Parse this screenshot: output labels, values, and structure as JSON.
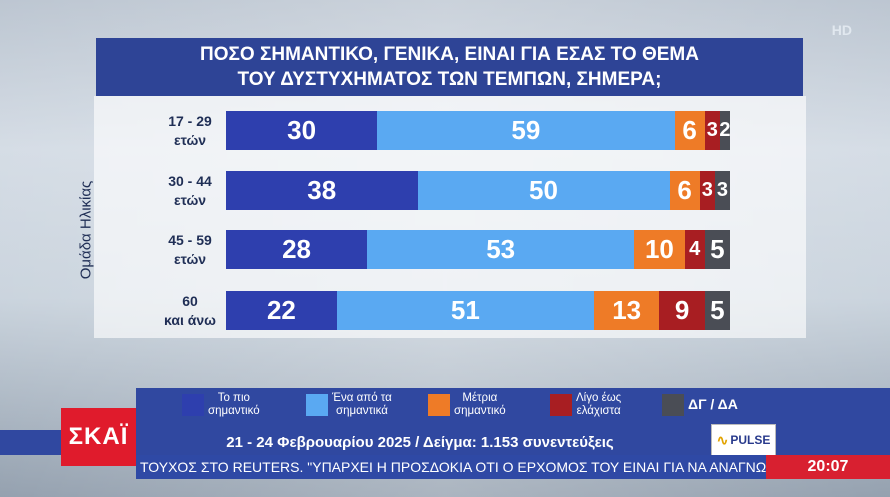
{
  "hd_badge": "HD",
  "title_lines": [
    "ΠΟΣΟ ΣΗΜΑΝΤΙΚΟ, ΓΕΝΙΚΑ, ΕΙΝΑΙ ΓΙΑ ΕΣΑΣ ΤΟ ΘΕΜΑ",
    "ΤΟΥ ΔΥΣΤΥΧΗΜΑΤΟΣ ΤΩΝ ΤΕΜΠΩΝ, ΣΗΜΕΡΑ;"
  ],
  "chart_data": {
    "type": "bar",
    "orientation": "horizontal",
    "stacked": true,
    "ylabel": "Ομάδα Ηλικίας",
    "categories": [
      [
        "17 - 29",
        "ετών"
      ],
      [
        "30 - 44",
        "ετών"
      ],
      [
        "45 - 59",
        "ετών"
      ],
      [
        "60",
        "και άνω"
      ]
    ],
    "series": [
      {
        "name": "Το πιο σημαντικό",
        "color": "#2e3fae",
        "values": [
          30,
          38,
          28,
          22
        ]
      },
      {
        "name": "Ένα από τα σημαντικά",
        "color": "#5aa9f2",
        "values": [
          59,
          50,
          53,
          51
        ]
      },
      {
        "name": "Μέτρια σημαντικό",
        "color": "#ee7b27",
        "values": [
          6,
          6,
          10,
          13
        ]
      },
      {
        "name": "Λίγο έως ελάχιστα",
        "color": "#a81e22",
        "values": [
          3,
          3,
          4,
          9
        ]
      },
      {
        "name": "ΔΓ / ΔΑ",
        "color": "#4a4d55",
        "values": [
          2,
          3,
          5,
          5
        ]
      }
    ],
    "legend": [
      [
        "Το πιο",
        "σημαντικό"
      ],
      [
        "Ένα από τα",
        "σημαντικά"
      ],
      [
        "Μέτρια",
        "σημαντικό"
      ],
      [
        "Λίγο έως",
        "ελάχιστα"
      ],
      [
        "ΔΓ / ΔΑ"
      ]
    ]
  },
  "footer": "21 - 24 Φεβρουαρίου 2025 / Δείγμα: 1.153 συνεντεύξεις",
  "logo_text": "ΣΚΑΪ",
  "pulse_text": "PULSE",
  "ticker": "ΤΟΥΧΟΣ ΣΤΟ REUTERS. \"ΥΠΑΡΧΕΙ Η ΠΡΟΣΔΟΚΙΑ ΟΤΙ Ο ΕΡΧΟΜΟΣ ΤΟΥ ΕΙΝΑΙ ΓΙΑ ΝΑ ΑΝΑΓΝΩΡ",
  "clock": "20:07"
}
